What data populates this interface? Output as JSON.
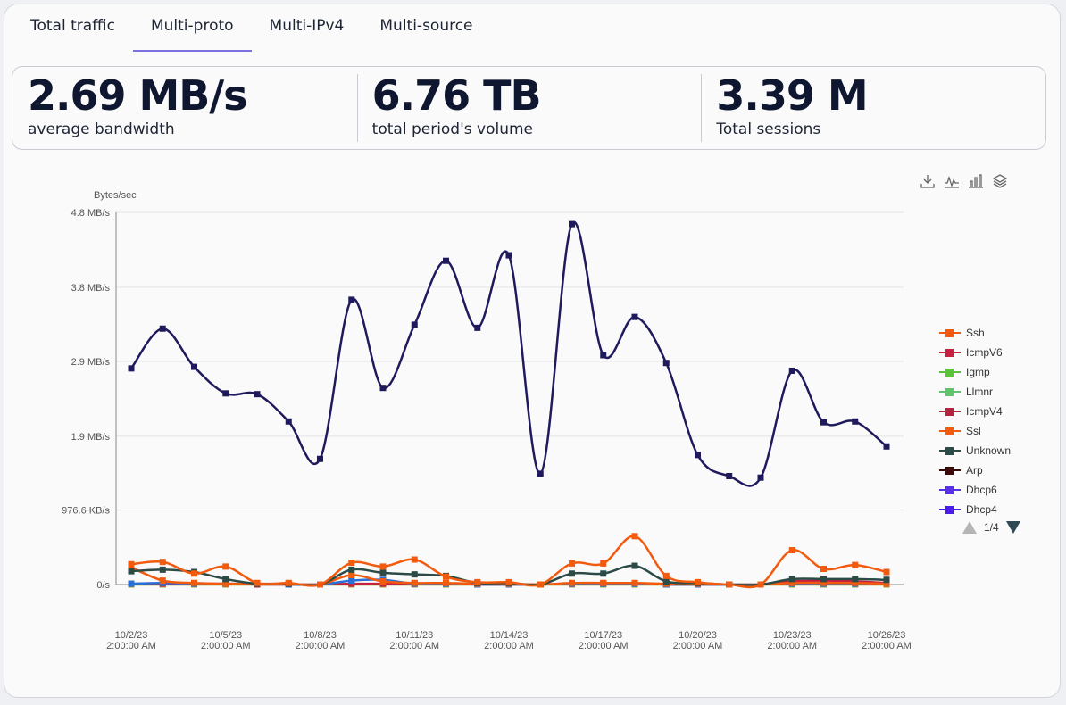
{
  "tabs": [
    {
      "label": "Total traffic"
    },
    {
      "label": "Multi-proto"
    },
    {
      "label": "Multi-IPv4"
    },
    {
      "label": "Multi-source"
    }
  ],
  "active_tab": "Multi-proto",
  "stats": [
    {
      "value": "2.69 MB/s",
      "label": "average bandwidth"
    },
    {
      "value": "6.76 TB",
      "label": "total period's volume"
    },
    {
      "value": "3.39 M",
      "label": "Total sessions"
    }
  ],
  "toolbar": {
    "icons": [
      "download-icon",
      "line-chart-icon",
      "bar-chart-icon",
      "layers-icon"
    ]
  },
  "legend": {
    "page": "1/4",
    "items": [
      {
        "name": "Ssh",
        "color": "#f25a0d"
      },
      {
        "name": "IcmpV6",
        "color": "#c8203f"
      },
      {
        "name": "Igmp",
        "color": "#5cc23a"
      },
      {
        "name": "Llmnr",
        "color": "#5fc46a"
      },
      {
        "name": "IcmpV4",
        "color": "#b5233f"
      },
      {
        "name": "Ssl",
        "color": "#f25a0d"
      },
      {
        "name": "Unknown",
        "color": "#2c4a46"
      },
      {
        "name": "Arp",
        "color": "#3d0808"
      },
      {
        "name": "Dhcp6",
        "color": "#5a2fe8"
      },
      {
        "name": "Dhcp4",
        "color": "#4a1de8"
      }
    ]
  },
  "chart_data": {
    "type": "line",
    "ylabel": "Bytes/sec",
    "ylim": [
      0,
      4.8
    ],
    "y_unit_values": "MB/s",
    "yticks": [
      {
        "value": 0,
        "label": "0/s"
      },
      {
        "value": 0.9537,
        "label": "976.6 KB/s"
      },
      {
        "value": 1.9,
        "label": "1.9 MB/s"
      },
      {
        "value": 2.86,
        "label": "2.9 MB/s"
      },
      {
        "value": 3.81,
        "label": "3.8 MB/s"
      },
      {
        "value": 4.77,
        "label": "4.8 MB/s"
      }
    ],
    "x": [
      "10/2/23",
      "10/3/23",
      "10/4/23",
      "10/5/23",
      "10/6/23",
      "10/7/23",
      "10/8/23",
      "10/9/23",
      "10/10/23",
      "10/11/23",
      "10/12/23",
      "10/13/23",
      "10/14/23",
      "10/15/23",
      "10/16/23",
      "10/17/23",
      "10/18/23",
      "10/19/23",
      "10/20/23",
      "10/21/23",
      "10/22/23",
      "10/23/23",
      "10/24/23",
      "10/25/23",
      "10/26/23"
    ],
    "xticks": [
      {
        "date": "10/2/23",
        "time": "2:00:00 AM"
      },
      {
        "date": "10/5/23",
        "time": "2:00:00 AM"
      },
      {
        "date": "10/8/23",
        "time": "2:00:00 AM"
      },
      {
        "date": "10/11/23",
        "time": "2:00:00 AM"
      },
      {
        "date": "10/14/23",
        "time": "2:00:00 AM"
      },
      {
        "date": "10/17/23",
        "time": "2:00:00 AM"
      },
      {
        "date": "10/20/23",
        "time": "2:00:00 AM"
      },
      {
        "date": "10/23/23",
        "time": "2:00:00 AM"
      },
      {
        "date": "10/26/23",
        "time": "2:00:00 AM"
      }
    ],
    "series": [
      {
        "color": "#1f1a5c",
        "values": [
          2.77,
          3.28,
          2.79,
          2.45,
          2.44,
          2.09,
          1.61,
          3.65,
          2.52,
          3.33,
          4.15,
          3.29,
          4.22,
          1.42,
          4.62,
          2.94,
          3.43,
          2.84,
          1.66,
          1.39,
          1.37,
          2.74,
          2.08,
          2.09,
          1.77
        ]
      },
      {
        "name": "Ssl",
        "color": "#f25a0d",
        "values": [
          0.26,
          0.29,
          0.14,
          0.23,
          0.02,
          0.02,
          0.0,
          0.28,
          0.23,
          0.32,
          0.1,
          0.03,
          0.03,
          0.0,
          0.27,
          0.27,
          0.62,
          0.11,
          0.03,
          0.0,
          0.0,
          0.44,
          0.2,
          0.25,
          0.16
        ]
      },
      {
        "name": "Unknown",
        "color": "#2c4a46",
        "values": [
          0.17,
          0.19,
          0.16,
          0.07,
          0.01,
          0.01,
          0.0,
          0.19,
          0.15,
          0.13,
          0.11,
          0.02,
          0.02,
          0.0,
          0.14,
          0.14,
          0.24,
          0.04,
          0.02,
          0.0,
          0.0,
          0.07,
          0.07,
          0.07,
          0.06
        ]
      },
      {
        "name": "Ssh",
        "color": "#f25a0d",
        "values": [
          0.22,
          0.05,
          0.02,
          0.01,
          0.01,
          0.01,
          0.0,
          0.12,
          0.04,
          0.02,
          0.02,
          0.01,
          0.01,
          0.0,
          0.02,
          0.02,
          0.02,
          0.01,
          0.01,
          0.0,
          0.0,
          0.02,
          0.02,
          0.02,
          0.01
        ]
      },
      {
        "color": "#2a6fd6",
        "values": [
          0.01,
          0.02,
          0.01,
          0.01,
          0.01,
          0.0,
          0.0,
          0.05,
          0.06,
          0.01,
          0.01,
          0.0,
          0.0,
          0.0,
          0.01,
          0.01,
          0.01,
          0.0,
          0.0,
          0.0,
          0.0,
          0.01,
          0.01,
          0.01,
          0.01
        ]
      },
      {
        "name": "IcmpV6",
        "color": "#c8203f",
        "values": [
          0.01,
          0.01,
          0.01,
          0.01,
          0.0,
          0.0,
          0.0,
          0.01,
          0.01,
          0.01,
          0.01,
          0.0,
          0.0,
          0.0,
          0.01,
          0.01,
          0.01,
          0.0,
          0.0,
          0.0,
          0.0,
          0.04,
          0.05,
          0.04,
          0.02
        ]
      },
      {
        "name": "Igmp",
        "color": "#9fa83a",
        "values": [
          0.0,
          0.0,
          0.0,
          0.0,
          0.0,
          0.0,
          0.0,
          0.0,
          0.0,
          0.0,
          0.0,
          0.0,
          0.0,
          0.0,
          0.0,
          0.0,
          0.0,
          0.0,
          0.0,
          0.0,
          0.0,
          0.0,
          0.0,
          0.0,
          0.0
        ]
      }
    ]
  }
}
